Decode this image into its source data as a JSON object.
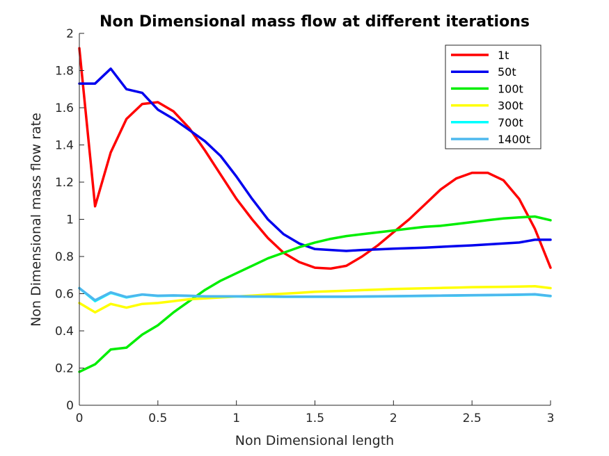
{
  "chart_data": {
    "type": "line",
    "title": "Non Dimensional mass flow at different iterations",
    "xlabel": "Non Dimensional length",
    "ylabel": "Non Dimensional mass flow rate",
    "xlim": [
      0,
      3
    ],
    "ylim": [
      0,
      2
    ],
    "xticks": [
      0,
      0.5,
      1,
      1.5,
      2,
      2.5,
      3
    ],
    "xtick_labels": [
      "0",
      "0.5",
      "1",
      "1.5",
      "2",
      "2.5",
      "3"
    ],
    "yticks": [
      0,
      0.2,
      0.4,
      0.6,
      0.8,
      1,
      1.2,
      1.4,
      1.6,
      1.8,
      2
    ],
    "ytick_labels": [
      "0",
      "0.2",
      "0.4",
      "0.6",
      "0.8",
      "1",
      "1.2",
      "1.4",
      "1.6",
      "1.8",
      "2"
    ],
    "grid": false,
    "legend_position": "top-right",
    "x": [
      0,
      0.1,
      0.2,
      0.3,
      0.4,
      0.5,
      0.6,
      0.7,
      0.8,
      0.9,
      1.0,
      1.1,
      1.2,
      1.3,
      1.4,
      1.5,
      1.6,
      1.7,
      1.8,
      1.9,
      2.0,
      2.1,
      2.2,
      2.3,
      2.4,
      2.5,
      2.6,
      2.7,
      2.8,
      2.9,
      3.0
    ],
    "series": [
      {
        "name": "1t",
        "color": "#ff0000",
        "values": [
          1.92,
          1.07,
          1.36,
          1.54,
          1.62,
          1.63,
          1.58,
          1.49,
          1.37,
          1.24,
          1.11,
          1.0,
          0.9,
          0.82,
          0.77,
          0.74,
          0.735,
          0.75,
          0.8,
          0.86,
          0.93,
          1.0,
          1.08,
          1.16,
          1.22,
          1.25,
          1.25,
          1.21,
          1.11,
          0.95,
          0.74
        ]
      },
      {
        "name": "50t",
        "color": "#0000ee",
        "values": [
          1.73,
          1.73,
          1.81,
          1.7,
          1.68,
          1.59,
          1.54,
          1.48,
          1.42,
          1.34,
          1.23,
          1.11,
          1.0,
          0.92,
          0.87,
          0.84,
          0.835,
          0.83,
          0.835,
          0.838,
          0.842,
          0.845,
          0.848,
          0.852,
          0.856,
          0.86,
          0.865,
          0.87,
          0.875,
          0.89,
          0.89
        ]
      },
      {
        "name": "100t",
        "color": "#00ee00",
        "values": [
          0.18,
          0.22,
          0.3,
          0.31,
          0.38,
          0.43,
          0.5,
          0.56,
          0.62,
          0.67,
          0.71,
          0.75,
          0.79,
          0.82,
          0.85,
          0.875,
          0.895,
          0.91,
          0.92,
          0.93,
          0.94,
          0.95,
          0.96,
          0.965,
          0.975,
          0.985,
          0.995,
          1.005,
          1.01,
          1.015,
          0.995
        ]
      },
      {
        "name": "300t",
        "color": "#ffff00",
        "values": [
          0.55,
          0.5,
          0.545,
          0.525,
          0.545,
          0.55,
          0.56,
          0.57,
          0.575,
          0.58,
          0.585,
          0.59,
          0.595,
          0.6,
          0.605,
          0.61,
          0.613,
          0.616,
          0.619,
          0.622,
          0.625,
          0.627,
          0.629,
          0.631,
          0.633,
          0.635,
          0.636,
          0.637,
          0.638,
          0.64,
          0.63
        ]
      },
      {
        "name": "700t",
        "color": "#00ffff",
        "values": [
          0.63,
          0.56,
          0.605,
          0.58,
          0.595,
          0.588,
          0.59,
          0.588,
          0.585,
          0.585,
          0.585,
          0.584,
          0.584,
          0.583,
          0.583,
          0.583,
          0.583,
          0.583,
          0.584,
          0.585,
          0.586,
          0.587,
          0.588,
          0.589,
          0.59,
          0.591,
          0.592,
          0.593,
          0.594,
          0.596,
          0.587
        ]
      },
      {
        "name": "1400t",
        "color": "#4db8ee",
        "values": [
          0.63,
          0.565,
          0.607,
          0.582,
          0.596,
          0.589,
          0.591,
          0.589,
          0.586,
          0.586,
          0.586,
          0.585,
          0.585,
          0.584,
          0.584,
          0.584,
          0.584,
          0.584,
          0.585,
          0.586,
          0.587,
          0.588,
          0.589,
          0.59,
          0.591,
          0.592,
          0.593,
          0.594,
          0.595,
          0.597,
          0.588
        ]
      }
    ]
  }
}
